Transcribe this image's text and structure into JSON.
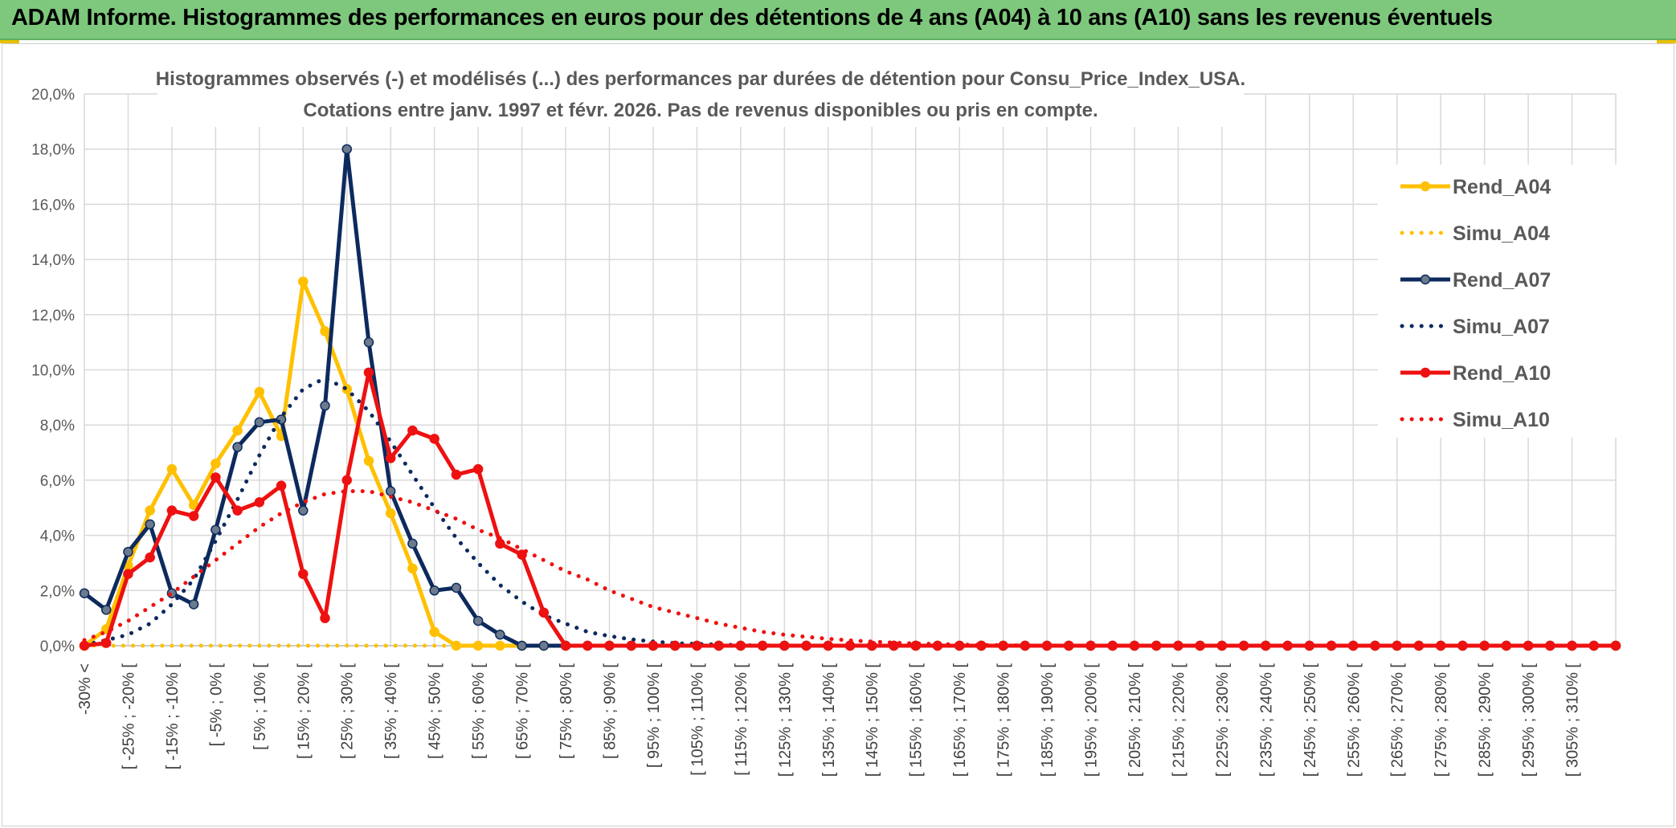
{
  "banner": {
    "title": "ADAM Informe. Histogrammes des performances en euros pour des détentions de 4 ans (A04) à 10 ans (A10) sans les revenus éventuels"
  },
  "colors": {
    "banner_bg": "#7dc87d",
    "a04": "#FFC000",
    "a07": "#0D2A5E",
    "a10": "#EE1111",
    "grid": "#d9d9d9"
  },
  "chart_data": {
    "type": "line",
    "title": "Histogrammes observés (-) et modélisés (...) des performances par durées de détention pour Consu_Price_Index_USA.",
    "subtitle": "Cotations entre janv. 1997 et févr. 2026. Pas de revenus disponibles ou pris en compte.",
    "ylim": [
      0,
      20
    ],
    "y_ticks": [
      "0,0%",
      "2,0%",
      "4,0%",
      "6,0%",
      "8,0%",
      "10,0%",
      "12,0%",
      "14,0%",
      "16,0%",
      "18,0%",
      "20,0%"
    ],
    "grid": true,
    "legend_position": "right",
    "x_count": 71,
    "tick_labels": [
      "-30% <",
      "[ -25% ; -20% [",
      "[ -15% ; -10% [",
      "[ -5% ; 0% [",
      "[ 5% ; 10% [",
      "[ 15% ; 20% [",
      "[ 25% ; 30% [",
      "[ 35% ; 40% [",
      "[ 45% ; 50% [",
      "[ 55% ; 60% [",
      "[ 65% ; 70% [",
      "[ 75% ; 80% [",
      "[ 85% ; 90% [",
      "[ 95% ; 100% [",
      "[ 105% ; 110% [",
      "[ 115% ; 120% [",
      "[ 125% ; 130% [",
      "[ 135% ; 140% [",
      "[ 145% ; 150% [",
      "[ 155% ; 160% [",
      "[ 165% ; 170% [",
      "[ 175% ; 180% [",
      "[ 185% ; 190% [",
      "[ 195% ; 200% [",
      "[ 205% ; 210% [",
      "[ 215% ; 220% [",
      "[ 225% ; 230% [",
      "[ 235% ; 240% [",
      "[ 245% ; 250% [",
      "[ 255% ; 260% [",
      "[ 265% ; 270% [",
      "[ 275% ; 280% [",
      "[ 285% ; 290% [",
      "[ 295% ; 300% [",
      "[ 305% ; 310% ["
    ],
    "series": [
      {
        "name": "Rend_A04",
        "style": "solid",
        "color": "#FFC000",
        "values": [
          0,
          0.6,
          2.9,
          4.9,
          6.4,
          5.1,
          6.6,
          7.8,
          9.2,
          7.6,
          13.2,
          11.4,
          9.3,
          6.7,
          4.8,
          2.8,
          0.5,
          0,
          0,
          0,
          0,
          0,
          0,
          0,
          0,
          0,
          0,
          0,
          0,
          0,
          0,
          0,
          0,
          0,
          0,
          0,
          0,
          0,
          0,
          0,
          0,
          0,
          0,
          0,
          0,
          0,
          0,
          0,
          0,
          0,
          0,
          0,
          0,
          0,
          0,
          0,
          0,
          0,
          0,
          0,
          0,
          0,
          0,
          0,
          0,
          0,
          0,
          0,
          0,
          0,
          0
        ]
      },
      {
        "name": "Simu_A04",
        "style": "dotted",
        "color": "#FFC000",
        "values": [
          0,
          0,
          0,
          0,
          0,
          0,
          0,
          0,
          0,
          0,
          0,
          0,
          0,
          0,
          0,
          0,
          0,
          0,
          0,
          0,
          0,
          0,
          0,
          0,
          0,
          0,
          0,
          0,
          0,
          0,
          0,
          0,
          0,
          0,
          0,
          0,
          0,
          0,
          0,
          0,
          0,
          0,
          0,
          0,
          0,
          0,
          0,
          0,
          0,
          0,
          0,
          0,
          0,
          0,
          0,
          0,
          0,
          0,
          0,
          0,
          0,
          0,
          0,
          0,
          0,
          0,
          0,
          0,
          0,
          0,
          0
        ]
      },
      {
        "name": "Rend_A07",
        "style": "solid",
        "color": "#0D2A5E",
        "values": [
          1.9,
          1.3,
          3.4,
          4.4,
          1.9,
          1.5,
          4.2,
          7.2,
          8.1,
          8.2,
          4.9,
          8.7,
          18.0,
          11.0,
          5.6,
          3.7,
          2.0,
          2.1,
          0.9,
          0.4,
          0,
          0,
          0,
          0,
          0,
          0,
          0,
          0,
          0,
          0,
          0,
          0,
          0,
          0,
          0,
          0,
          0,
          0,
          0,
          0,
          0,
          0,
          0,
          0,
          0,
          0,
          0,
          0,
          0,
          0,
          0,
          0,
          0,
          0,
          0,
          0,
          0,
          0,
          0,
          0,
          0,
          0,
          0,
          0,
          0,
          0,
          0,
          0,
          0,
          0,
          0
        ]
      },
      {
        "name": "Simu_A07",
        "style": "dotted",
        "color": "#0D2A5E",
        "values": [
          0.02,
          0.2,
          0.4,
          0.8,
          1.5,
          2.4,
          3.8,
          5.3,
          6.9,
          8.3,
          9.3,
          9.7,
          9.3,
          8.5,
          7.4,
          6.2,
          5.0,
          3.9,
          3.0,
          2.2,
          1.6,
          1.1,
          0.8,
          0.5,
          0.35,
          0.23,
          0.15,
          0.09,
          0.06,
          0.04,
          0.02,
          0.01,
          0,
          0,
          0,
          0,
          0,
          0,
          0,
          0,
          0,
          0,
          0,
          0,
          0,
          0,
          0,
          0,
          0,
          0,
          0,
          0,
          0,
          0,
          0,
          0,
          0,
          0,
          0,
          0,
          0,
          0,
          0,
          0,
          0,
          0,
          0,
          0,
          0,
          0,
          0
        ]
      },
      {
        "name": "Rend_A10",
        "style": "solid",
        "color": "#EE1111",
        "values": [
          0,
          0.1,
          2.6,
          3.2,
          4.9,
          4.7,
          6.1,
          4.9,
          5.2,
          5.8,
          2.6,
          1.0,
          6.0,
          9.9,
          6.8,
          7.8,
          7.5,
          6.2,
          6.4,
          3.7,
          3.3,
          1.2,
          0,
          0,
          0,
          0,
          0,
          0,
          0,
          0,
          0,
          0,
          0,
          0,
          0,
          0,
          0,
          0,
          0,
          0,
          0,
          0,
          0,
          0,
          0,
          0,
          0,
          0,
          0,
          0,
          0,
          0,
          0,
          0,
          0,
          0,
          0,
          0,
          0,
          0,
          0,
          0,
          0,
          0,
          0,
          0,
          0,
          0,
          0,
          0,
          0
        ]
      },
      {
        "name": "Simu_A10",
        "style": "dotted",
        "color": "#EE1111",
        "values": [
          0.2,
          0.5,
          0.9,
          1.4,
          1.9,
          2.5,
          3.1,
          3.7,
          4.3,
          4.8,
          5.2,
          5.5,
          5.6,
          5.6,
          5.4,
          5.2,
          4.9,
          4.6,
          4.2,
          3.9,
          3.5,
          3.1,
          2.7,
          2.4,
          2.0,
          1.7,
          1.4,
          1.2,
          1.0,
          0.8,
          0.65,
          0.5,
          0.4,
          0.32,
          0.25,
          0.19,
          0.15,
          0.11,
          0.08,
          0.06,
          0.04,
          0.03,
          0.02,
          0.01,
          0,
          0,
          0,
          0,
          0,
          0,
          0,
          0,
          0,
          0,
          0,
          0,
          0,
          0,
          0,
          0,
          0,
          0,
          0,
          0,
          0,
          0,
          0,
          0,
          0,
          0,
          0
        ]
      }
    ]
  }
}
